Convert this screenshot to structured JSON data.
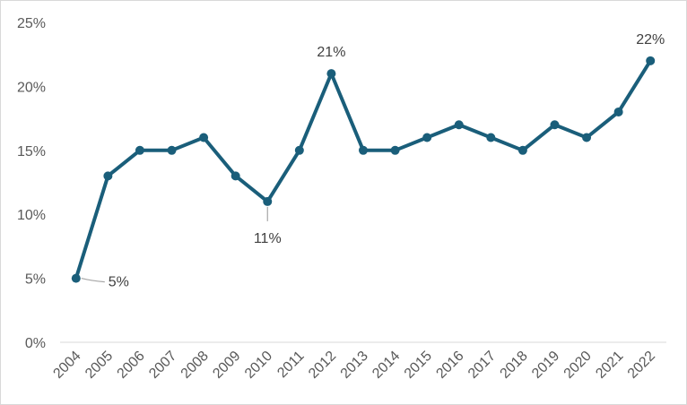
{
  "chart_data": {
    "type": "line",
    "title": "",
    "xlabel": "",
    "ylabel": "",
    "x": [
      "2004",
      "2005",
      "2006",
      "2007",
      "2008",
      "2009",
      "2010",
      "2011",
      "2012",
      "2013",
      "2014",
      "2015",
      "2016",
      "2017",
      "2018",
      "2019",
      "2020",
      "2021",
      "2022"
    ],
    "y": [
      5,
      13,
      15,
      15,
      16,
      13,
      11,
      15,
      21,
      15,
      15,
      16,
      17,
      16,
      15,
      17,
      16,
      18,
      22
    ],
    "ylim": [
      0,
      25
    ],
    "y_ticks": [
      "0%",
      "5%",
      "10%",
      "15%",
      "20%",
      "25%"
    ],
    "y_unit": "%",
    "grid": false,
    "legend": "none",
    "line_color": "#1a5e7a",
    "data_labels": [
      {
        "year": "2004",
        "text": "5%"
      },
      {
        "year": "2010",
        "text": "11%"
      },
      {
        "year": "2012",
        "text": "21%"
      },
      {
        "year": "2022",
        "text": "22%"
      }
    ]
  }
}
